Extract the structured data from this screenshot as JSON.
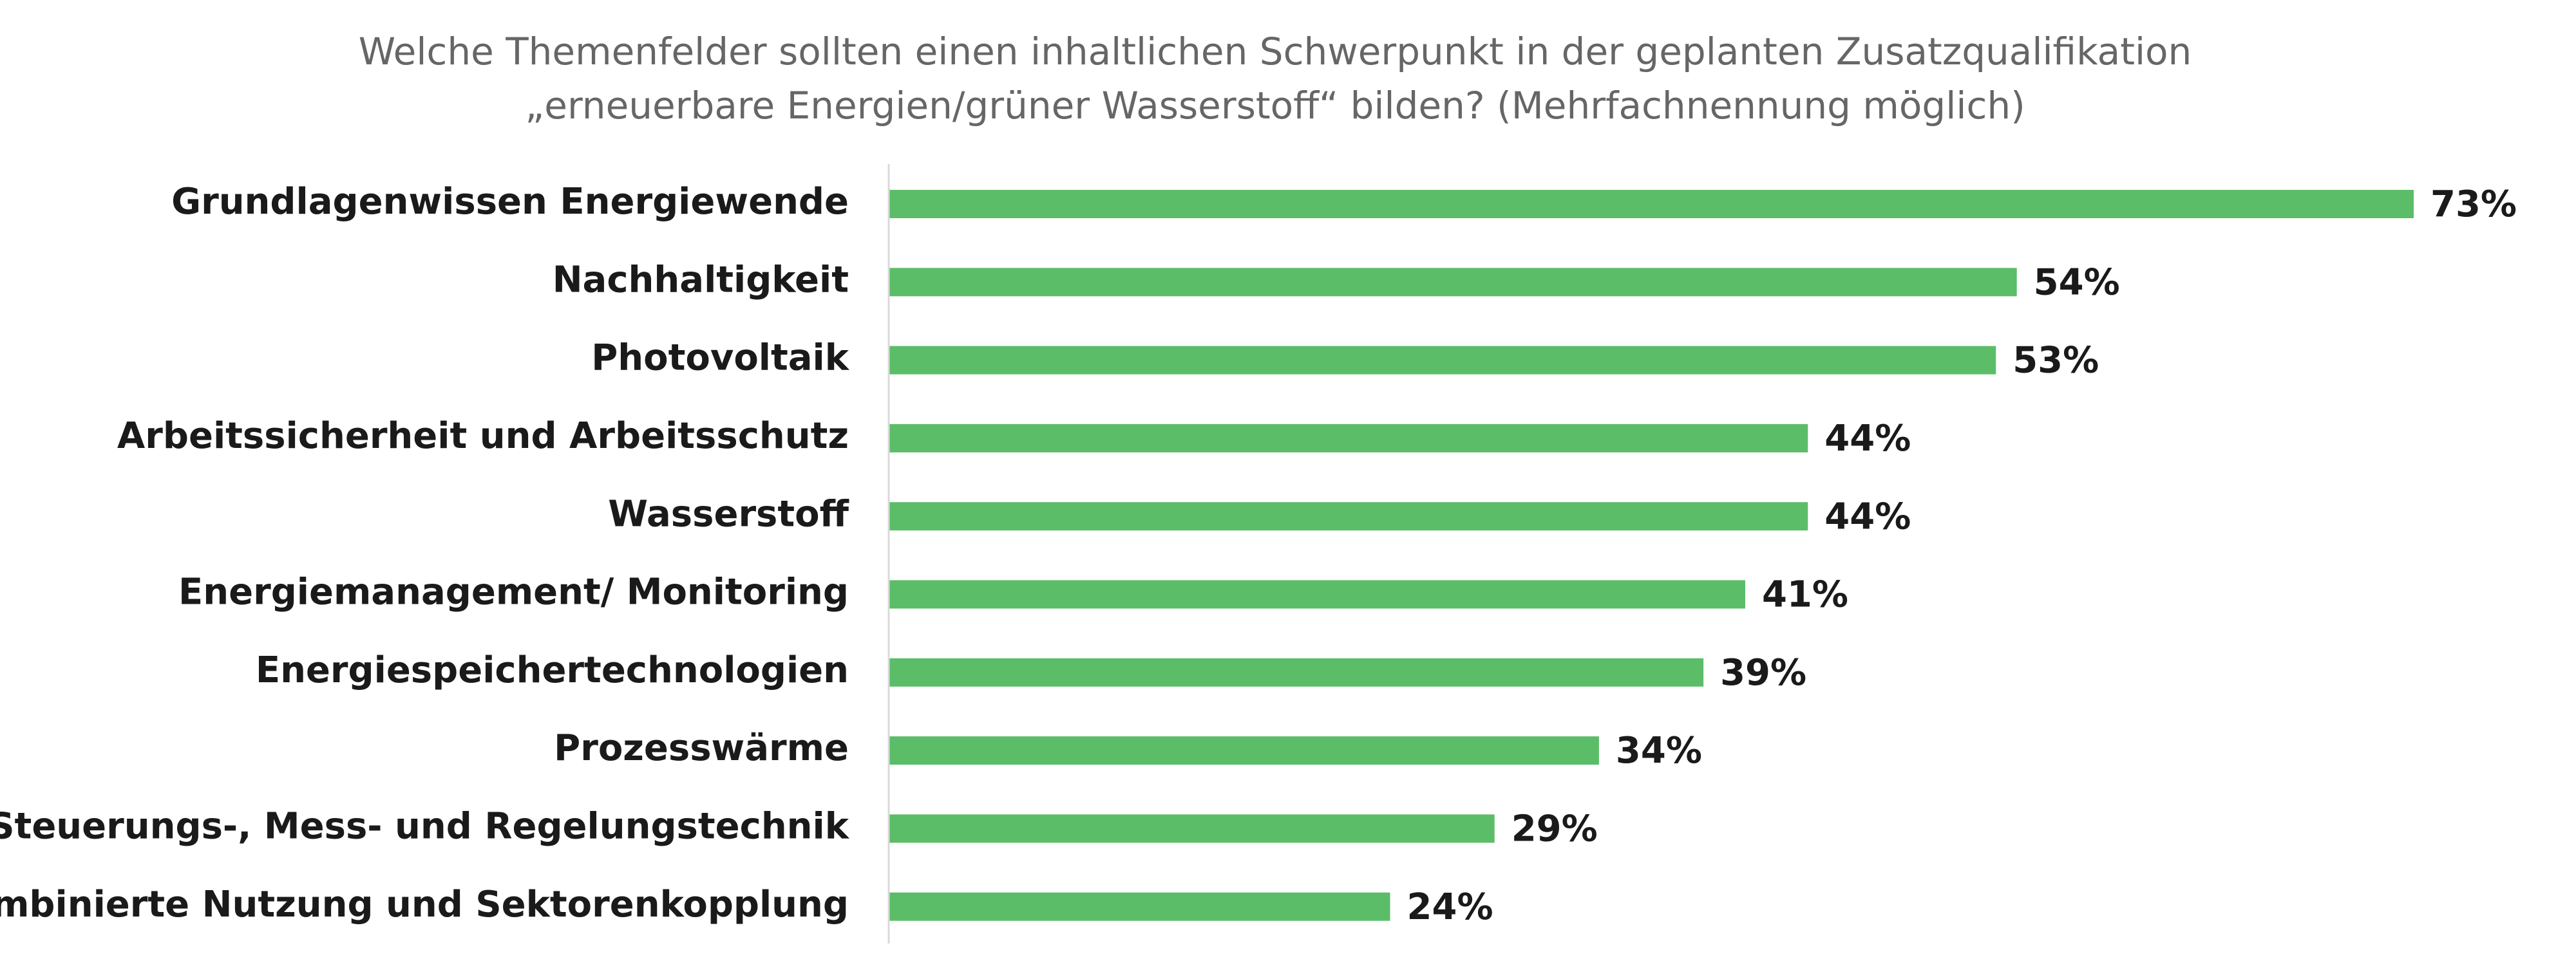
{
  "chart_data": {
    "type": "bar",
    "orientation": "horizontal",
    "title_lines": [
      "Welche Themenfelder sollten einen inhaltlichen Schwerpunkt in der geplanten Zusatzqualifikation",
      "„erneuerbare Energien/grüner Wasserstoff“ bilden? (Mehrfachnennung möglich)"
    ],
    "categories": [
      "Grundlagenwissen Energiewende",
      "Nachhaltigkeit",
      "Photovoltaik",
      "Arbeitssicherheit und Arbeitsschutz",
      "Wasserstoff",
      "Energiemanagement/ Monitoring",
      "Energiespeichertechnologien",
      "Prozesswärme",
      "Steuerungs-, Mess- und Regelungstechnik",
      "Kombinierte Nutzung und Sektorenkopplung"
    ],
    "values": [
      73,
      54,
      53,
      44,
      44,
      41,
      39,
      34,
      29,
      24
    ],
    "value_labels": [
      "73%",
      "54%",
      "53%",
      "44%",
      "44%",
      "41%",
      "39%",
      "34%",
      "29%",
      "24%"
    ],
    "xlim": [
      0,
      73
    ],
    "grid": false,
    "legend": "none",
    "bar_color": "#5bbd68",
    "axis_color": "#d9d9d9",
    "title_color": "#666666",
    "label_color": "#1a1a1a"
  }
}
